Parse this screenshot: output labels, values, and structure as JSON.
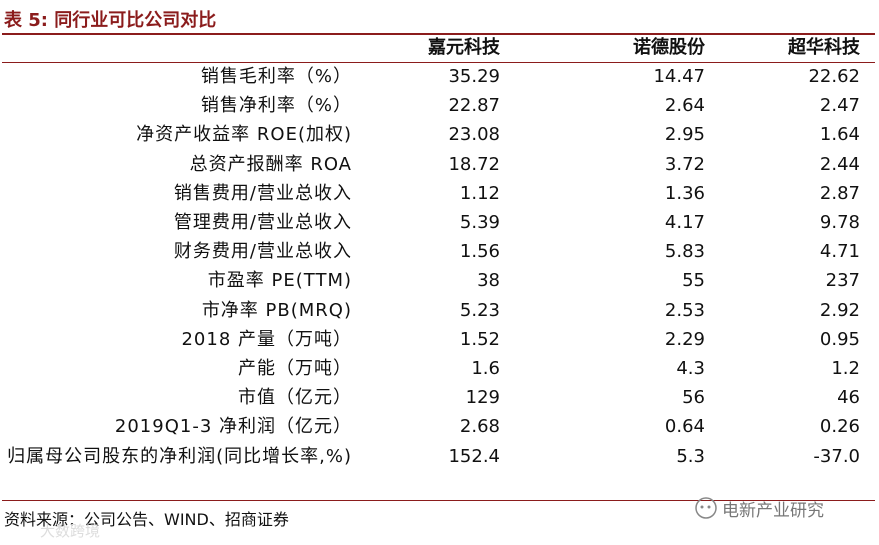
{
  "header": {
    "title": "表 5:  同行业可比公司对比"
  },
  "table": {
    "columns": [
      "嘉元科技",
      "诺德股份",
      "超华科技"
    ],
    "rows": [
      [
        "销售毛利率（%）",
        "35.29",
        "14.47",
        "22.62"
      ],
      [
        "销售净利率（%）",
        "22.87",
        "2.64",
        "2.47"
      ],
      [
        "净资产收益率 ROE(加权)",
        "23.08",
        "2.95",
        "1.64"
      ],
      [
        "总资产报酬率 ROA",
        "18.72",
        "3.72",
        "2.44"
      ],
      [
        "销售费用/营业总收入",
        "1.12",
        "1.36",
        "2.87"
      ],
      [
        "管理费用/营业总收入",
        "5.39",
        "4.17",
        "9.78"
      ],
      [
        "财务费用/营业总收入",
        "1.56",
        "5.83",
        "4.71"
      ],
      [
        "市盈率 PE(TTM)",
        "38",
        "55",
        "237"
      ],
      [
        "市净率 PB(MRQ)",
        "5.23",
        "2.53",
        "2.92"
      ],
      [
        "2018 产量（万吨）",
        "1.52",
        "2.29",
        "0.95"
      ],
      [
        "产能（万吨）",
        "1.6",
        "4.3",
        "1.2"
      ],
      [
        "市值（亿元）",
        "129",
        "56",
        "46"
      ],
      [
        "2019Q1-3 净利润（亿元）",
        "2.68",
        "0.64",
        "0.26"
      ],
      [
        "归属母公司股东的净利润(同比增长率,%)",
        "152.4",
        "5.3",
        "-37.0"
      ]
    ]
  },
  "footer": {
    "source": "资料来源：公司公告、WIND、招商证券"
  },
  "watermarks": [
    "电新产业研究",
    "大数跨境"
  ]
}
